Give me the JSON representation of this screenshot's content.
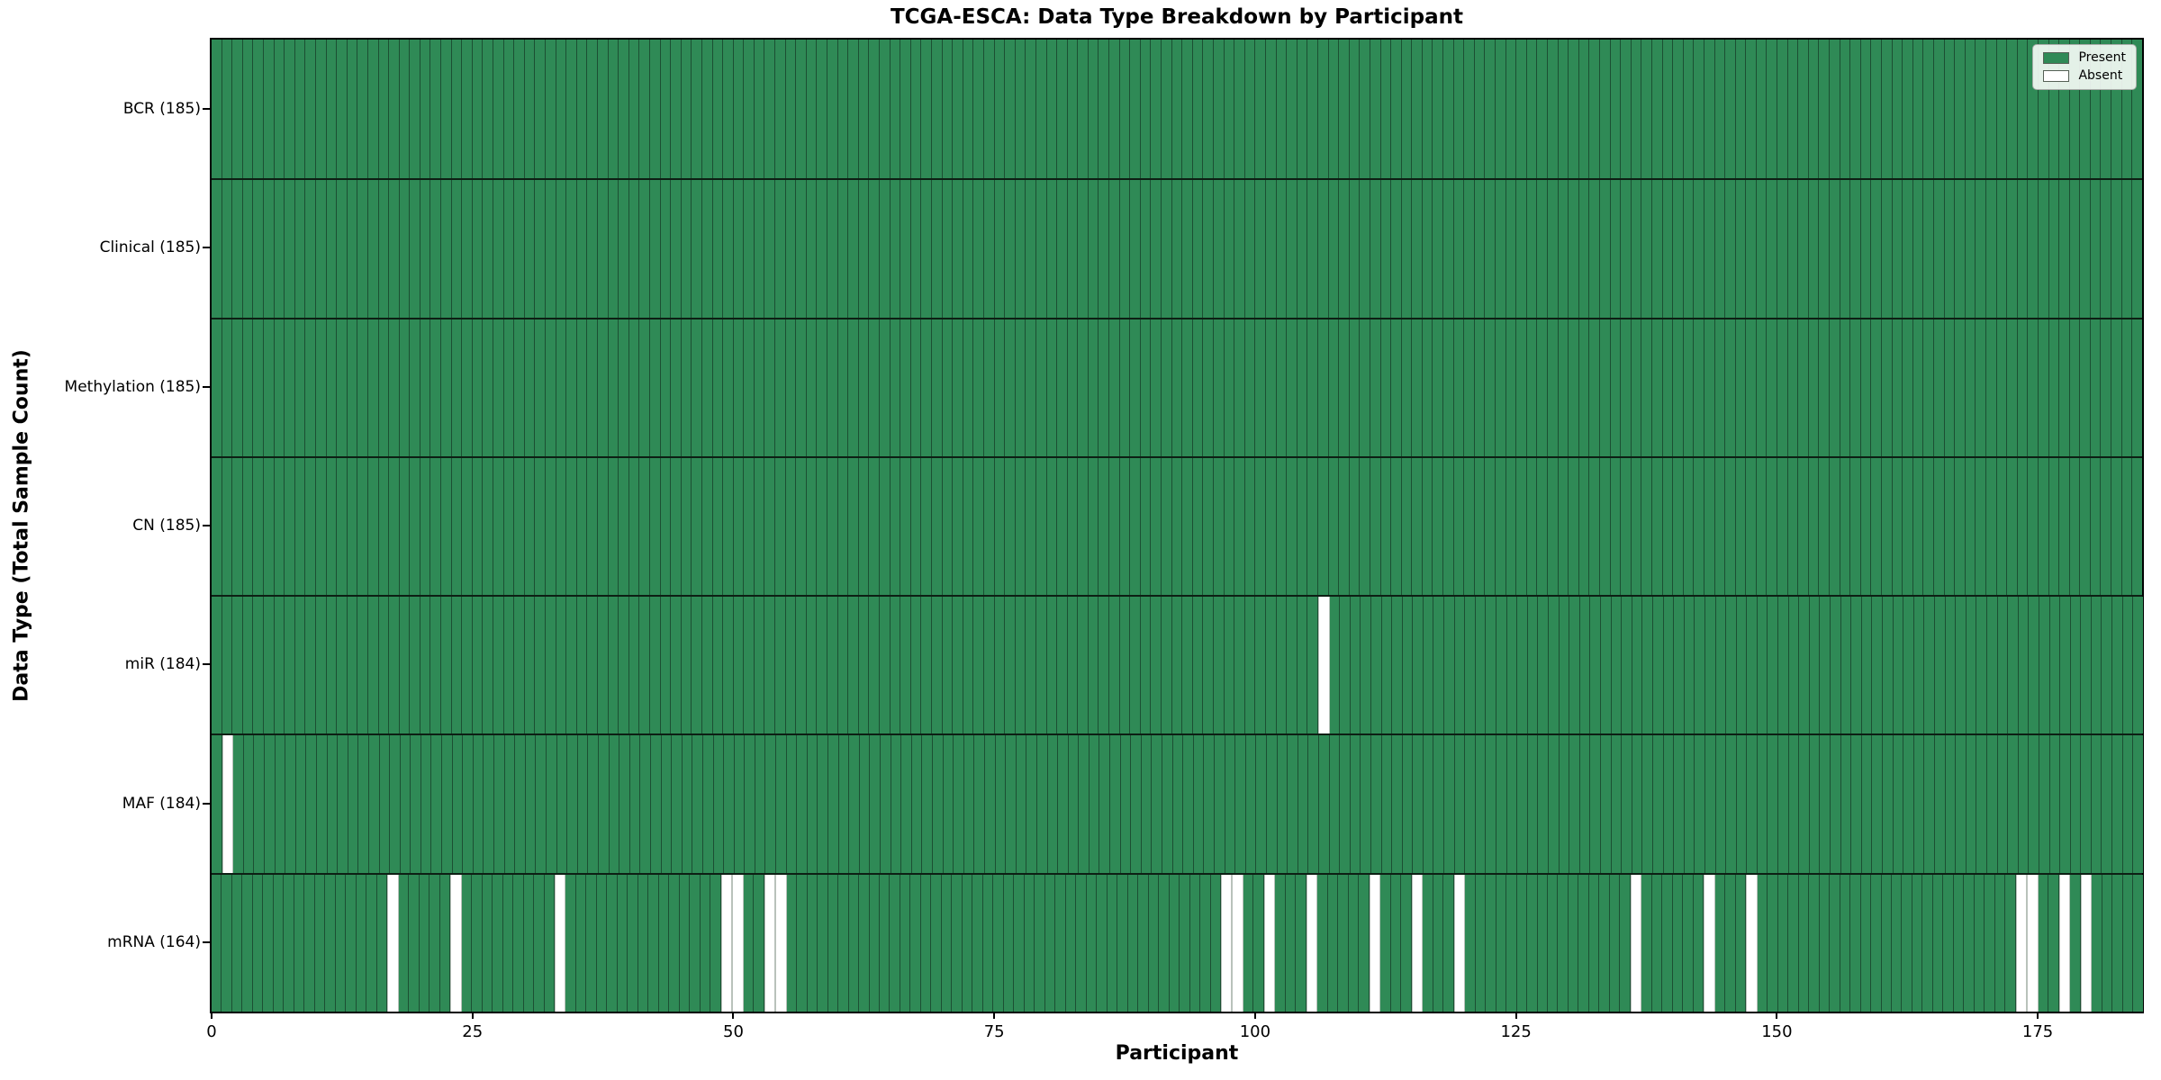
{
  "title": "TCGA-ESCA: Data Type Breakdown by Participant",
  "x_axis": {
    "label": "Participant",
    "ticks": [
      0,
      25,
      50,
      75,
      100,
      125,
      150,
      175
    ]
  },
  "y_axis": {
    "label": "Data Type (Total Sample Count)"
  },
  "legend": [
    {
      "label": "Present",
      "color": "#2f8a56"
    },
    {
      "label": "Absent",
      "color": "#ffffff"
    }
  ],
  "chart_data": {
    "type": "heatmap",
    "n_participants": 185,
    "x_ticks": [
      0,
      25,
      50,
      75,
      100,
      125,
      150,
      175
    ],
    "value_legend": {
      "present": "Present",
      "absent": "Absent"
    },
    "rows": [
      {
        "name": "BCR",
        "total_count": 185,
        "label": "BCR (185)",
        "absent_participants": []
      },
      {
        "name": "Clinical",
        "total_count": 185,
        "label": "Clinical (185)",
        "absent_participants": []
      },
      {
        "name": "Methylation",
        "total_count": 185,
        "label": "Methylation (185)",
        "absent_participants": []
      },
      {
        "name": "CN",
        "total_count": 185,
        "label": "CN (185)",
        "absent_participants": []
      },
      {
        "name": "miR",
        "total_count": 184,
        "label": "miR (184)",
        "absent_participants": [
          106
        ]
      },
      {
        "name": "MAF",
        "total_count": 184,
        "label": "MAF (184)",
        "absent_participants": [
          1
        ]
      },
      {
        "name": "mRNA",
        "total_count": 164,
        "label": "mRNA (164)",
        "absent_participants": [
          17,
          23,
          33,
          49,
          50,
          53,
          54,
          97,
          98,
          101,
          105,
          111,
          115,
          119,
          136,
          143,
          147,
          173,
          174,
          177,
          179
        ]
      }
    ],
    "colors": {
      "present": "#2f8a56",
      "absent": "#ffffff",
      "cell_edge": "#1c4f33",
      "absent_edge": "#b9c2bb",
      "row_separator": "#0d1f14",
      "plot_border": "#000000"
    },
    "layout_hints": {
      "legend_position": "upper right",
      "grid": "cell-edges"
    }
  }
}
